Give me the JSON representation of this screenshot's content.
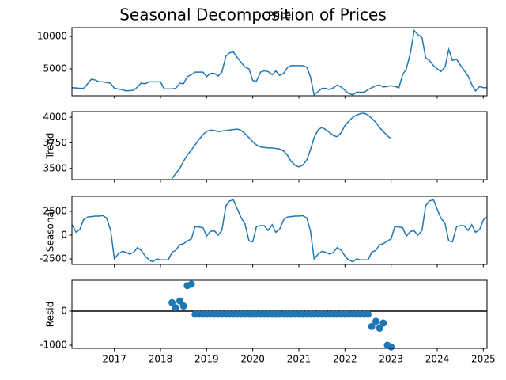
{
  "title": "Seasonal Decomposition of Prices",
  "chart_data": [
    {
      "type": "line",
      "title": "Price",
      "color": "#1f77b4",
      "x": [
        2016.08,
        2016.17,
        2016.25,
        2016.33,
        2016.42,
        2016.5,
        2016.58,
        2016.67,
        2016.75,
        2016.83,
        2016.92,
        2017,
        2017.08,
        2017.17,
        2017.25,
        2017.33,
        2017.42,
        2017.5,
        2017.58,
        2017.67,
        2017.75,
        2017.83,
        2017.92,
        2018,
        2018.08,
        2018.17,
        2018.25,
        2018.33,
        2018.42,
        2018.5,
        2018.58,
        2018.67,
        2018.75,
        2018.83,
        2018.92,
        2019,
        2019.08,
        2019.17,
        2019.25,
        2019.33,
        2019.42,
        2019.5,
        2019.58,
        2019.67,
        2019.75,
        2019.83,
        2019.92,
        2020,
        2020.08,
        2020.17,
        2020.25,
        2020.33,
        2020.42,
        2020.5,
        2020.58,
        2020.67,
        2020.75,
        2020.83,
        2020.92,
        2021,
        2021.08,
        2021.17,
        2021.25,
        2021.33,
        2021.42,
        2021.5,
        2021.58,
        2021.67,
        2021.75,
        2021.83,
        2021.92,
        2022,
        2022.08,
        2022.17,
        2022.25,
        2022.33,
        2022.42,
        2022.5,
        2022.58,
        2022.67,
        2022.75,
        2022.83,
        2022.92,
        2023,
        2023.08,
        2023.17,
        2023.25,
        2023.33,
        2023.42,
        2023.5,
        2023.58,
        2023.67,
        2023.75,
        2023.83,
        2023.92,
        2024,
        2024.08,
        2024.17,
        2024.25,
        2024.33,
        2024.42,
        2024.5,
        2024.58,
        2024.67,
        2024.75,
        2024.83,
        2024.92,
        2025,
        2025.08
      ],
      "values": [
        2100,
        2050,
        2000,
        2000,
        2700,
        3400,
        3300,
        3000,
        3000,
        2900,
        2800,
        2000,
        1900,
        1800,
        1600,
        1650,
        1700,
        2200,
        2800,
        2700,
        3000,
        3000,
        3000,
        3000,
        1900,
        1900,
        1900,
        2000,
        2800,
        2700,
        3800,
        4100,
        4500,
        4500,
        4500,
        3800,
        4300,
        4300,
        3900,
        4500,
        7000,
        7500,
        7600,
        6700,
        6000,
        5300,
        5000,
        3200,
        3100,
        4500,
        4700,
        4600,
        4100,
        4700,
        4000,
        4300,
        5200,
        5500,
        5500,
        5500,
        5500,
        5300,
        3800,
        1000,
        1500,
        2000,
        2000,
        1800,
        2100,
        2500,
        2200,
        1700,
        1200,
        1000,
        1400,
        1400,
        1400,
        1800,
        2100,
        2400,
        2500,
        2200,
        2300,
        2400,
        2300,
        2100,
        4100,
        5000,
        7500,
        10900,
        10300,
        9800,
        6700,
        6300,
        5500,
        5000,
        4600,
        5300,
        8000,
        6300,
        6500,
        5600,
        4800,
        3900,
        2600,
        1600,
        2300,
        2100,
        2100
      ],
      "xlim": [
        2016.08,
        2025.08
      ],
      "xticks": [
        2017,
        2018,
        2019,
        2020,
        2021,
        2022,
        2023,
        2024,
        2025
      ],
      "ylim": [
        850,
        11350
      ],
      "yticks": [
        5000,
        10000
      ]
    },
    {
      "type": "line",
      "ylabel": "Trend",
      "color": "#1f77b4",
      "x": [
        2018.25,
        2018.33,
        2018.42,
        2018.5,
        2018.58,
        2018.67,
        2018.75,
        2018.83,
        2018.92,
        2019,
        2019.08,
        2019.17,
        2019.25,
        2019.33,
        2019.42,
        2019.5,
        2019.58,
        2019.67,
        2019.75,
        2019.83,
        2019.92,
        2020,
        2020.08,
        2020.17,
        2020.25,
        2020.33,
        2020.42,
        2020.5,
        2020.58,
        2020.67,
        2020.75,
        2020.83,
        2020.92,
        2021,
        2021.08,
        2021.17,
        2021.25,
        2021.33,
        2021.42,
        2021.5,
        2021.58,
        2021.67,
        2021.75,
        2021.83,
        2021.92,
        2022,
        2022.08,
        2022.17,
        2022.25,
        2022.33,
        2022.42,
        2022.5,
        2022.58,
        2022.67,
        2022.75,
        2022.83,
        2022.92,
        2023
      ],
      "values": [
        3400,
        3450,
        3500,
        3570,
        3630,
        3680,
        3730,
        3780,
        3830,
        3860,
        3875,
        3870,
        3860,
        3865,
        3870,
        3875,
        3880,
        3885,
        3870,
        3840,
        3800,
        3760,
        3730,
        3710,
        3705,
        3700,
        3700,
        3695,
        3690,
        3670,
        3630,
        3570,
        3530,
        3515,
        3530,
        3580,
        3680,
        3800,
        3880,
        3900,
        3880,
        3850,
        3820,
        3810,
        3850,
        3920,
        3960,
        4000,
        4020,
        4035,
        4040,
        4020,
        3990,
        3950,
        3900,
        3860,
        3820,
        3790
      ],
      "xlim": [
        2016.08,
        2025.08
      ],
      "xticks": [
        2017,
        2018,
        2019,
        2020,
        2021,
        2022,
        2023,
        2024,
        2025
      ],
      "ylim": [
        3390,
        4055
      ],
      "yticks": [
        3500,
        3750,
        4000
      ]
    },
    {
      "type": "line",
      "ylabel": "Seasonal",
      "color": "#1f77b4",
      "x": [
        2016.08,
        2016.17,
        2016.25,
        2016.33,
        2016.42,
        2016.5,
        2016.58,
        2016.67,
        2016.75,
        2016.83,
        2016.92,
        2017,
        2017.08,
        2017.17,
        2017.25,
        2017.33,
        2017.42,
        2017.5,
        2017.58,
        2017.67,
        2017.75,
        2017.83,
        2017.92,
        2018,
        2018.08,
        2018.17,
        2018.25,
        2018.33,
        2018.42,
        2018.5,
        2018.58,
        2018.67,
        2018.75,
        2018.83,
        2018.92,
        2019,
        2019.08,
        2019.17,
        2019.25,
        2019.33,
        2019.42,
        2019.5,
        2019.58,
        2019.67,
        2019.75,
        2019.83,
        2019.92,
        2020,
        2020.08,
        2020.17,
        2020.25,
        2020.33,
        2020.42,
        2020.5,
        2020.58,
        2020.67,
        2020.75,
        2020.83,
        2020.92,
        2021,
        2021.08,
        2021.17,
        2021.25,
        2021.33,
        2021.42,
        2021.5,
        2021.58,
        2021.67,
        2021.75,
        2021.83,
        2021.92,
        2022,
        2022.08,
        2022.17,
        2022.25,
        2022.33,
        2022.42,
        2022.5,
        2022.58,
        2022.67,
        2022.75,
        2022.83,
        2022.92,
        2023,
        2023.08,
        2023.17,
        2023.25,
        2023.33,
        2023.42,
        2023.5,
        2023.58,
        2023.67,
        2023.75,
        2023.83,
        2023.92,
        2024,
        2024.08,
        2024.17,
        2024.25,
        2024.33,
        2024.42,
        2024.5,
        2024.58,
        2024.67,
        2024.75,
        2024.83,
        2024.92,
        2025,
        2025.08
      ],
      "values": [
        1100,
        300,
        600,
        1600,
        1900,
        1950,
        2000,
        2000,
        2050,
        1800,
        500,
        -2500,
        -2000,
        -1700,
        -1800,
        -2000,
        -1800,
        -1300,
        -1600,
        -2200,
        -2600,
        -2800,
        -2500,
        -2600,
        -2600,
        -2600,
        -1800,
        -1600,
        -1000,
        -900,
        -600,
        -400,
        900,
        850,
        800,
        -100,
        400,
        450,
        0,
        500,
        3100,
        3600,
        3700,
        2700,
        1800,
        1200,
        -600,
        -700,
        900,
        1000,
        1000,
        500,
        1100,
        300,
        600,
        1600,
        1900,
        1950,
        2000,
        2000,
        2050,
        1800,
        500,
        -2500,
        -2000,
        -1700,
        -1800,
        -2000,
        -1800,
        -1300,
        -1600,
        -2200,
        -2600,
        -2800,
        -2500,
        -2600,
        -2600,
        -2600,
        -1800,
        -1600,
        -1000,
        -900,
        -600,
        -400,
        900,
        850,
        800,
        -100,
        400,
        450,
        0,
        500,
        3100,
        3600,
        3700,
        2700,
        1800,
        1200,
        -600,
        -700,
        900,
        1000,
        1000,
        500,
        1100,
        300,
        600,
        1600,
        1900
      ],
      "xlim": [
        2016.08,
        2025.08
      ],
      "xticks": [
        2017,
        2018,
        2019,
        2020,
        2021,
        2022,
        2023,
        2024,
        2025
      ],
      "ylim": [
        -3080,
        4080
      ],
      "yticks": [
        -2500,
        0,
        2500
      ]
    },
    {
      "type": "scatter",
      "ylabel": "Resid",
      "color": "#1f77b4",
      "hline": 0,
      "x": [
        2018.25,
        2018.33,
        2018.42,
        2018.5,
        2018.58,
        2018.67,
        2018.75,
        2018.83,
        2018.92,
        2019,
        2019.08,
        2019.17,
        2019.25,
        2019.33,
        2019.42,
        2019.5,
        2019.58,
        2019.67,
        2019.75,
        2019.83,
        2019.92,
        2020,
        2020.08,
        2020.17,
        2020.25,
        2020.33,
        2020.42,
        2020.5,
        2020.58,
        2020.67,
        2020.75,
        2020.83,
        2020.92,
        2021,
        2021.08,
        2021.17,
        2021.25,
        2021.33,
        2021.42,
        2021.5,
        2021.58,
        2021.67,
        2021.75,
        2021.83,
        2021.92,
        2022,
        2022.08,
        2022.17,
        2022.25,
        2022.33,
        2022.42,
        2022.5,
        2022.58,
        2022.67,
        2022.75,
        2022.83,
        2022.92,
        2023
      ],
      "values": [
        250,
        100,
        300,
        150,
        750,
        790,
        -93,
        -93,
        -93,
        -93,
        -93,
        -93,
        -93,
        -93,
        -93,
        -93,
        -93,
        -93,
        -93,
        -93,
        -93,
        -93,
        -93,
        -93,
        -93,
        -93,
        -93,
        -93,
        -93,
        -93,
        -93,
        -93,
        -93,
        -93,
        -93,
        -93,
        -93,
        -93,
        -93,
        -93,
        -93,
        -93,
        -93,
        -93,
        -93,
        -93,
        -93,
        -93,
        -93,
        -93,
        -93,
        -93,
        -450,
        -300,
        -500,
        -350,
        -1000,
        -1050
      ],
      "xlim": [
        2016.08,
        2025.08
      ],
      "xticks": [
        2017,
        2018,
        2019,
        2020,
        2021,
        2022,
        2023,
        2024,
        2025
      ],
      "ylim": [
        -1093,
        907
      ],
      "yticks": [
        -1000,
        0
      ]
    }
  ]
}
